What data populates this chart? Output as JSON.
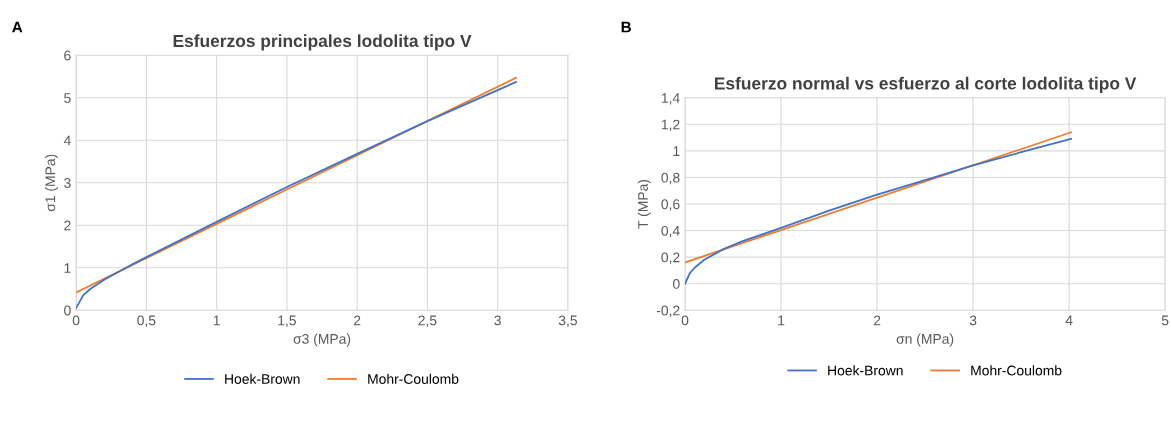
{
  "chart_data": [
    {
      "type": "line",
      "title": "Esfuerzos principales lodolita tipo V",
      "xlabel": "σ3 (MPa)",
      "ylabel": "σ1 (MPa)",
      "annotations": [
        "A"
      ],
      "series": [
        {
          "name": "Hoek-Brown",
          "color": "#4472c4",
          "x": [
            0,
            0.05,
            0.1,
            0.2,
            0.3,
            0.4,
            0.5,
            1,
            1.5,
            2,
            2.5,
            3,
            3.13
          ],
          "values": [
            0.05,
            0.35,
            0.5,
            0.72,
            0.9,
            1.08,
            1.25,
            2.08,
            2.9,
            3.68,
            4.45,
            5.18,
            5.37
          ]
        },
        {
          "name": "Mohr-Coulomb",
          "color": "#ed7d31",
          "x": [
            0,
            3.13
          ],
          "values": [
            0.42,
            5.47
          ]
        }
      ],
      "xlim": [
        0,
        3.5
      ],
      "xticks": [
        0,
        {
          "value": 0.5,
          "label": "0,5"
        },
        1,
        {
          "value": 1.5,
          "label": "1,5"
        },
        2,
        {
          "value": 2.5,
          "label": "2,5"
        },
        3,
        {
          "value": 3.5,
          "label": "3,5"
        }
      ],
      "ylim": [
        0,
        6
      ],
      "yticks": [
        0,
        1,
        2,
        3,
        4,
        5,
        6
      ],
      "grid": true,
      "legend": "bottom"
    },
    {
      "type": "line",
      "title": "Esfuerzo normal vs esfuerzo al corte lodolita tipo V",
      "xlabel": "σn (MPa)",
      "ylabel": "T (MPa)",
      "annotations": [
        "B"
      ],
      "series": [
        {
          "name": "Hoek-Brown",
          "color": "#4472c4",
          "x": [
            0,
            0.05,
            0.1,
            0.2,
            0.4,
            0.6,
            1,
            1.5,
            2,
            2.5,
            3,
            3.5,
            4.02
          ],
          "values": [
            0,
            0.08,
            0.12,
            0.18,
            0.26,
            0.32,
            0.42,
            0.55,
            0.67,
            0.78,
            0.89,
            0.99,
            1.09
          ]
        },
        {
          "name": "Mohr-Coulomb",
          "color": "#ed7d31",
          "x": [
            0,
            4.02
          ],
          "values": [
            0.16,
            1.14
          ]
        }
      ],
      "xlim": [
        0,
        5
      ],
      "xticks": [
        0,
        1,
        2,
        3,
        4,
        5
      ],
      "ylim": [
        -0.2,
        1.4
      ],
      "yticks": [
        {
          "value": -0.2,
          "label": "-0,2"
        },
        0,
        {
          "value": 0.2,
          "label": "0,2"
        },
        {
          "value": 0.4,
          "label": "0,4"
        },
        {
          "value": 0.6,
          "label": "0,6"
        },
        {
          "value": 0.8,
          "label": "0,8"
        },
        1,
        {
          "value": 1.2,
          "label": "1,2"
        },
        {
          "value": 1.4,
          "label": "1,4"
        }
      ],
      "grid": true,
      "legend": "bottom"
    }
  ]
}
